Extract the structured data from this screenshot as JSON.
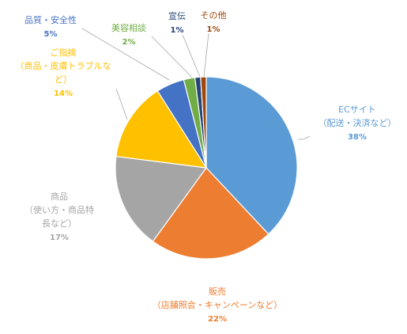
{
  "chart_data": {
    "type": "pie",
    "title": "",
    "legend": "none",
    "start_angle_deg": 0,
    "direction": "clockwise",
    "slices": [
      {
        "name_lines": [
          "ECサイト",
          "（配送・決済など）"
        ],
        "value_label": "38%",
        "value": 38,
        "color": "#5B9BD5"
      },
      {
        "name_lines": [
          "販売",
          "（店舗照会・キャンペーンなど）"
        ],
        "value_label": "22%",
        "value": 22,
        "color": "#ED7D31"
      },
      {
        "name_lines": [
          "商品",
          "（使い方・商品特",
          "長など）"
        ],
        "value_label": "17%",
        "value": 17,
        "color": "#A5A5A5"
      },
      {
        "name_lines": [
          "ご指摘",
          "（商品・皮膚トラブルな",
          "ど）"
        ],
        "value_label": "14%",
        "value": 14,
        "color": "#FFC000"
      },
      {
        "name_lines": [
          "品質・安全性"
        ],
        "value_label": "5%",
        "value": 5,
        "color": "#4472C4"
      },
      {
        "name_lines": [
          "美容相談"
        ],
        "value_label": "2%",
        "value": 2,
        "color": "#70AD47"
      },
      {
        "name_lines": [
          "宣伝"
        ],
        "value_label": "1%",
        "value": 1,
        "color": "#264478"
      },
      {
        "name_lines": [
          "その他"
        ],
        "value_label": "1%",
        "value": 1,
        "color": "#9E480E"
      }
    ]
  }
}
